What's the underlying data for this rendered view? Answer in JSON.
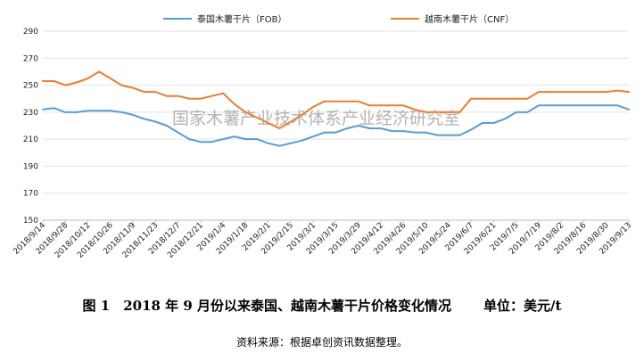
{
  "chart_data": {
    "type": "line",
    "title": "",
    "xlabel": "",
    "ylabel": "",
    "ylim": [
      150,
      290
    ],
    "yticks": [
      150,
      170,
      190,
      210,
      230,
      250,
      270,
      290
    ],
    "grid": true,
    "legend_position": "top",
    "x_tick_labels": [
      "2018/9/14",
      "2018/9/28",
      "2018/10/12",
      "2018/10/26",
      "2018/11/9",
      "2018/11/23",
      "2018/12/7",
      "2018/12/21",
      "2019/1/4",
      "2019/1/18",
      "2019/2/1",
      "2019/2/15",
      "2019/3/1",
      "2019/3/15",
      "2019/3/29",
      "2019/4/12",
      "2019/4/26",
      "2019/5/10",
      "2019/5/24",
      "2019/6/7",
      "2019/6/21",
      "2019/7/5",
      "2019/7/19",
      "2019/8/2",
      "2019/8/16",
      "2019/8/30",
      "2019/9/13"
    ],
    "x": [
      "2018/9/14",
      "2018/9/21",
      "2018/9/28",
      "2018/10/5",
      "2018/10/12",
      "2018/10/19",
      "2018/10/26",
      "2018/11/2",
      "2018/11/9",
      "2018/11/16",
      "2018/11/23",
      "2018/11/30",
      "2018/12/7",
      "2018/12/14",
      "2018/12/21",
      "2018/12/28",
      "2019/1/4",
      "2019/1/11",
      "2019/1/18",
      "2019/1/25",
      "2019/2/1",
      "2019/2/8",
      "2019/2/15",
      "2019/2/22",
      "2019/3/1",
      "2019/3/8",
      "2019/3/15",
      "2019/3/22",
      "2019/3/29",
      "2019/4/5",
      "2019/4/12",
      "2019/4/19",
      "2019/4/26",
      "2019/5/3",
      "2019/5/10",
      "2019/5/17",
      "2019/5/24",
      "2019/5/31",
      "2019/6/7",
      "2019/6/14",
      "2019/6/21",
      "2019/6/28",
      "2019/7/5",
      "2019/7/12",
      "2019/7/19",
      "2019/7/26",
      "2019/8/2",
      "2019/8/9",
      "2019/8/16",
      "2019/8/23",
      "2019/8/30",
      "2019/9/6",
      "2019/9/13"
    ],
    "series": [
      {
        "name": "泰国木薯干片（FOB）",
        "color": "#5b9bd5",
        "values": [
          232,
          233,
          230,
          230,
          231,
          231,
          231,
          230,
          228,
          225,
          223,
          220,
          215,
          210,
          208,
          208,
          210,
          212,
          210,
          210,
          207,
          205,
          207,
          209,
          212,
          215,
          215,
          218,
          220,
          218,
          218,
          216,
          216,
          215,
          215,
          213,
          213,
          213,
          217,
          222,
          222,
          225,
          230,
          230,
          235,
          235,
          235,
          235,
          235,
          235,
          235,
          235,
          232
        ]
      },
      {
        "name": "越南木薯干片（CNF）",
        "color": "#ed7d31",
        "values": [
          253,
          253,
          250,
          252,
          255,
          260,
          255,
          250,
          248,
          245,
          245,
          242,
          242,
          240,
          240,
          242,
          244,
          236,
          230,
          226,
          222,
          218,
          223,
          228,
          234,
          238,
          238,
          238,
          238,
          235,
          235,
          235,
          235,
          232,
          230,
          230,
          230,
          230,
          240,
          240,
          240,
          240,
          240,
          240,
          245,
          245,
          245,
          245,
          245,
          245,
          245,
          246,
          245
        ]
      }
    ]
  },
  "watermark": "国家木薯产业技术体系产业经济研究室",
  "caption": {
    "title": "图 1　2018 年 9 月份以来泰国、越南木薯干片价格变化情况",
    "unit": "单位：美元/t"
  },
  "source": "资料来源：根据卓创资讯数据整理。"
}
